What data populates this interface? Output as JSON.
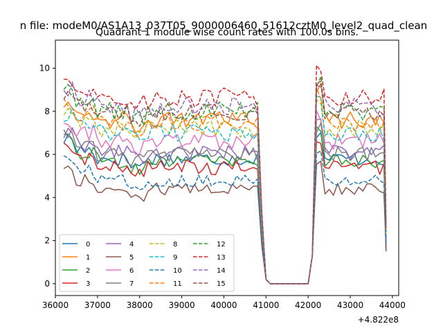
{
  "suptitle": "n file: modeM0/AS1A13_037T05_9000006460_51612cztM0_level2_quad_clean",
  "chart_data": {
    "type": "line",
    "title": "Quadrant 1 module wise count rates with 100.0s bins.",
    "xlabel": "",
    "ylabel": "",
    "x_offset_label": "+4.822e8",
    "xlim": [
      36000,
      44150
    ],
    "ylim": [
      -0.55,
      11.3
    ],
    "x_ticks": [
      36000,
      37000,
      38000,
      39000,
      40000,
      41000,
      42000,
      43000,
      44000
    ],
    "x_tick_labels": [
      "36000",
      "37000",
      "38000",
      "39000",
      "40000",
      "41000",
      "42000",
      "43000",
      "44000"
    ],
    "y_ticks": [
      0,
      2,
      4,
      6,
      8,
      10
    ],
    "y_tick_labels": [
      "0",
      "2",
      "4",
      "6",
      "8",
      "10"
    ],
    "grid": false,
    "legend": {
      "placement": "lower-left",
      "columns": 4
    },
    "segments": [
      [
        36200,
        40800
      ],
      [
        41100,
        42000
      ],
      [
        42200,
        43850
      ]
    ],
    "series": [
      {
        "name": "0",
        "color": "#1f77b4",
        "dash": "solid",
        "base": 5.8,
        "amp": 0.35,
        "tail": 1.5
      },
      {
        "name": "1",
        "color": "#ff7f0e",
        "dash": "solid",
        "base": 7.6,
        "amp": 0.4,
        "tail": 2.3
      },
      {
        "name": "2",
        "color": "#2ca02c",
        "dash": "solid",
        "base": 5.7,
        "amp": 0.35,
        "tail": 2.0
      },
      {
        "name": "3",
        "color": "#d62728",
        "dash": "solid",
        "base": 5.4,
        "amp": 0.35,
        "tail": 1.8
      },
      {
        "name": "4",
        "color": "#9467bd",
        "dash": "solid",
        "base": 6.1,
        "amp": 0.35,
        "tail": 2.1
      },
      {
        "name": "5",
        "color": "#8c564b",
        "dash": "solid",
        "base": 4.4,
        "amp": 0.3,
        "tail": 1.6
      },
      {
        "name": "6",
        "color": "#e377c2",
        "dash": "solid",
        "base": 6.6,
        "amp": 0.4,
        "tail": 2.2
      },
      {
        "name": "7",
        "color": "#7f7f7f",
        "dash": "solid",
        "base": 6.0,
        "amp": 0.35,
        "tail": 1.9
      },
      {
        "name": "8",
        "color": "#bcbd22",
        "dash": "dashed",
        "base": 7.2,
        "amp": 0.4,
        "tail": 2.3
      },
      {
        "name": "9",
        "color": "#17becf",
        "dash": "dashed",
        "base": 7.0,
        "amp": 0.4,
        "tail": 2.4
      },
      {
        "name": "10",
        "color": "#1f77b4",
        "dash": "dashed",
        "base": 4.8,
        "amp": 0.3,
        "tail": 1.8
      },
      {
        "name": "11",
        "color": "#ff7f0e",
        "dash": "dashed",
        "base": 7.5,
        "amp": 0.4,
        "tail": 2.5
      },
      {
        "name": "12",
        "color": "#2ca02c",
        "dash": "dashed",
        "base": 8.0,
        "amp": 0.45,
        "tail": 2.7
      },
      {
        "name": "13",
        "color": "#d62728",
        "dash": "dashed",
        "base": 8.6,
        "amp": 0.5,
        "tail": 2.9
      },
      {
        "name": "14",
        "color": "#9467bd",
        "dash": "dashed",
        "base": 8.2,
        "amp": 0.45,
        "tail": 2.6
      },
      {
        "name": "15",
        "color": "#8c564b",
        "dash": "dashed",
        "base": 7.9,
        "amp": 0.45,
        "tail": 2.6
      }
    ]
  }
}
